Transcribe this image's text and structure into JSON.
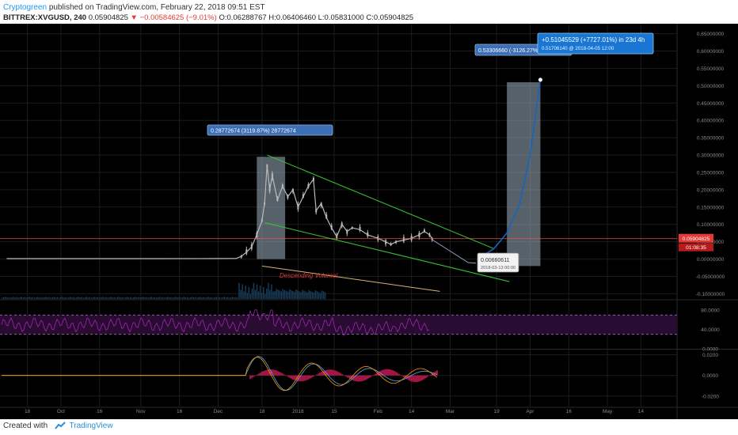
{
  "header": {
    "author": "Cryptogreen",
    "published": "published on TradingView.com, February 22, 2018 09:51 EST",
    "symbol": "BITTREX:XVGUSD, 240",
    "last": "0.05904825",
    "arrow": "▼",
    "change": "−0.00584625 (−9.01%)",
    "ohlc": "O:0.06288767 H:0.06406460 L:0.05831000 C:0.05904825"
  },
  "footer": {
    "created_with": "Created with",
    "brand": "TradingView"
  },
  "colors": {
    "background": "#000000",
    "grid": "#1c1c1c",
    "candle": "#b9b9b9",
    "channel": "#39c734",
    "projection": "#1565c0",
    "price_line": "#ff4d4d",
    "rsi": "#9c27b0",
    "macd_hist": "#e91e63",
    "volume": "#1b3f5e",
    "annotation": "#e53935"
  },
  "chart_data": [
    {
      "type": "line",
      "title": "",
      "series": [
        {
          "name": "",
          "points": [
            [
              "2017-09-10",
              0.0014
            ],
            [
              "2017-10-01",
              0.0014
            ],
            [
              "2017-10-20",
              0.0013
            ],
            [
              "2017-11-10",
              0.0014
            ],
            [
              "2017-11-30",
              0.0015
            ],
            [
              "2017-12-08",
              0.0018
            ],
            [
              "2017-12-10",
              0.008
            ],
            [
              "2017-12-12",
              0.02
            ],
            [
              "2017-12-14",
              0.035
            ],
            [
              "2017-12-16",
              0.07
            ],
            [
              "2017-12-18",
              0.11
            ],
            [
              "2017-12-19",
              0.16
            ],
            [
              "2017-12-20",
              0.27
            ],
            [
              "2017-12-21",
              0.2
            ],
            [
              "2017-12-22",
              0.24
            ],
            [
              "2017-12-24",
              0.17
            ],
            [
              "2017-12-26",
              0.21
            ],
            [
              "2017-12-28",
              0.18
            ],
            [
              "2017-12-30",
              0.2
            ],
            [
              "2018-01-01",
              0.15
            ],
            [
              "2018-01-03",
              0.18
            ],
            [
              "2018-01-05",
              0.21
            ],
            [
              "2018-01-07",
              0.23
            ],
            [
              "2018-01-08",
              0.14
            ],
            [
              "2018-01-10",
              0.16
            ],
            [
              "2018-01-12",
              0.12
            ],
            [
              "2018-01-14",
              0.09
            ],
            [
              "2018-01-16",
              0.065
            ],
            [
              "2018-01-18",
              0.1
            ],
            [
              "2018-01-20",
              0.08
            ],
            [
              "2018-01-22",
              0.09
            ],
            [
              "2018-01-25",
              0.085
            ],
            [
              "2018-01-28",
              0.07
            ],
            [
              "2018-02-01",
              0.06
            ],
            [
              "2018-02-04",
              0.05
            ],
            [
              "2018-02-06",
              0.042
            ],
            [
              "2018-02-08",
              0.05
            ],
            [
              "2018-02-11",
              0.055
            ],
            [
              "2018-02-14",
              0.06
            ],
            [
              "2018-02-17",
              0.07
            ],
            [
              "2018-02-19",
              0.08
            ],
            [
              "2018-02-21",
              0.07
            ],
            [
              "2018-02-22",
              0.059
            ]
          ]
        }
      ],
      "projection": [
        [
          "2018-03-13",
          0.0066
        ],
        [
          "2018-03-18",
          0.03
        ],
        [
          "2018-03-23",
          0.075
        ],
        [
          "2018-03-28",
          0.16
        ],
        [
          "2018-04-01",
          0.3
        ],
        [
          "2018-04-05",
          0.517
        ]
      ],
      "channel_upper": [
        [
          "2017-12-20",
          0.3
        ],
        [
          "2018-03-18",
          0.03
        ]
      ],
      "channel_lower": [
        [
          "2017-12-19",
          0.105
        ],
        [
          "2018-03-24",
          -0.065
        ]
      ],
      "forecast_arrow": [
        [
          "2018-02-22",
          0.056
        ],
        [
          "2018-03-08",
          -0.01
        ],
        [
          "2018-03-11",
          -0.012
        ]
      ],
      "volume_trend": [
        [
          "2017-12-18",
          -0.02
        ],
        [
          "2018-02-25",
          -0.093
        ]
      ],
      "annotations": {
        "first_range": "0.28772674 (3119.87%) 28772674",
        "second_range": "0.53306660 (-3126.27%)",
        "target": "+0.51045529 (+7727.01%) in 23d 4h",
        "target_sub": "0.51706140  @ 2018-04-05  12:00",
        "low_value": "0.00660611",
        "low_date": "2018-03-13 00:00",
        "volume_note": "Descending Volume!"
      },
      "price_axis": {
        "ylim": [
          -0.115,
          0.665
        ],
        "ticks": [
          "0.65000000",
          "0.60000000",
          "0.55000000",
          "0.50000000",
          "0.45000000",
          "0.40000000",
          "0.35000000",
          "0.30000000",
          "0.25000000",
          "0.20000000",
          "0.15000000",
          "0.10000000",
          "0.05000000",
          "0.00000000",
          "-0.05000000",
          "-0.10000000"
        ],
        "last_price": "0.05904825",
        "countdown": "01:08:35"
      },
      "x_axis": {
        "xlim": [
          "2017-09-08",
          "2018-05-28"
        ],
        "ticks": [
          [
            "2017-09-18",
            "18"
          ],
          [
            "2017-10-01",
            "Oct"
          ],
          [
            "2017-10-16",
            "16"
          ],
          [
            "2017-11-01",
            "Nov"
          ],
          [
            "2017-11-16",
            "16"
          ],
          [
            "2017-12-01",
            "Dec"
          ],
          [
            "2017-12-18",
            "18"
          ],
          [
            "2018-01-01",
            "2018"
          ],
          [
            "2018-01-15",
            "15"
          ],
          [
            "2018-02-01",
            "Feb"
          ],
          [
            "2018-02-14",
            "14"
          ],
          [
            "2018-03-01",
            "Mar"
          ],
          [
            "2018-03-19",
            "19"
          ],
          [
            "2018-04-01",
            "Apr"
          ],
          [
            "2018-04-16",
            "16"
          ],
          [
            "2018-05-01",
            "May"
          ],
          [
            "2018-05-14",
            "14"
          ]
        ]
      }
    },
    {
      "type": "line",
      "title": "",
      "ylim": [
        0,
        100
      ],
      "levels": [
        70,
        30
      ],
      "ticks": [
        "80.0000",
        "40.0000",
        "0.0000"
      ]
    },
    {
      "type": "bar",
      "title": "",
      "ylim": [
        -0.03,
        0.025
      ],
      "ticks": [
        "0.0200",
        "0.0000",
        "-0.0200"
      ]
    }
  ]
}
